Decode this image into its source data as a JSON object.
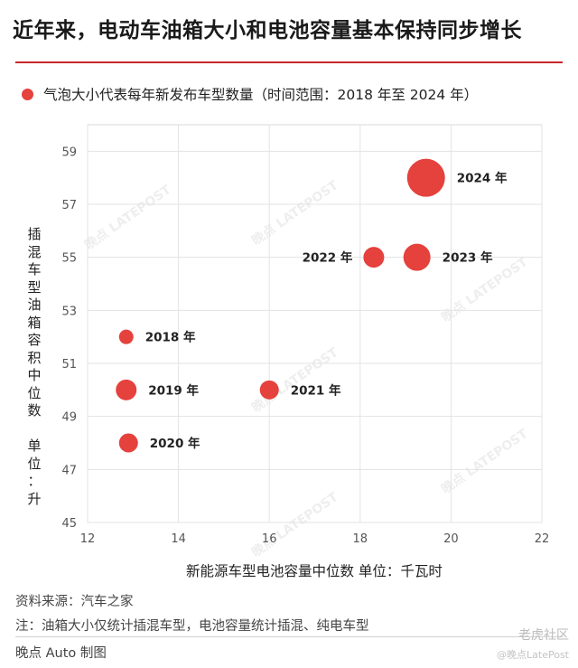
{
  "header": {
    "title": "近年来，电动车油箱大小和电池容量基本保持同步增长"
  },
  "legend": {
    "text": "气泡大小代表每年新发布车型数量（时间范围：2018 年至 2024 年）",
    "color": "#e5413d"
  },
  "axes": {
    "ylabel_chars": [
      "插",
      "混",
      "车",
      "型",
      "油",
      "箱",
      "容",
      "积",
      "中",
      "位",
      "数",
      "",
      "单",
      "位",
      "：",
      "升"
    ],
    "xlabel": "新能源车型电池容量中位数  单位：千瓦时"
  },
  "chart_data": {
    "type": "scatter",
    "title": "近年来，电动车油箱大小和电池容量基本保持同步增长",
    "xlabel": "新能源车型电池容量中位数  单位：千瓦时",
    "ylabel": "插混车型油箱容积中位数  单位：升",
    "xlim": [
      12,
      22
    ],
    "ylim": [
      45,
      60
    ],
    "xticks": [
      12,
      14,
      16,
      18,
      20,
      22
    ],
    "yticks": [
      45,
      47,
      49,
      51,
      53,
      55,
      57,
      59
    ],
    "grid": true,
    "series": [
      {
        "name": "2018 年",
        "x": 12.85,
        "y": 52,
        "size_rank": 1
      },
      {
        "name": "2019 年",
        "x": 12.85,
        "y": 50,
        "size_rank": 3
      },
      {
        "name": "2020 年",
        "x": 12.9,
        "y": 48,
        "size_rank": 2
      },
      {
        "name": "2021 年",
        "x": 16.0,
        "y": 50,
        "size_rank": 2
      },
      {
        "name": "2022 年",
        "x": 18.3,
        "y": 55,
        "size_rank": 3
      },
      {
        "name": "2023 年",
        "x": 19.25,
        "y": 55,
        "size_rank": 4
      },
      {
        "name": "2024 年",
        "x": 19.45,
        "y": 58,
        "size_rank": 6
      }
    ],
    "bubble_color": "#e5413d"
  },
  "footer": {
    "source": "资料来源：汽车之家",
    "note": "注：油箱大小仅统计插混车型，电池容量统计插混、纯电车型",
    "credit": "晚点 Auto 制图",
    "watermark": "老虎社区",
    "watermark_sub": "@晚点LatePost"
  }
}
